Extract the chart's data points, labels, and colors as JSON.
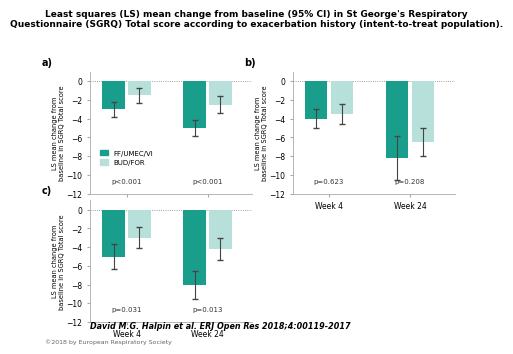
{
  "title": "Least squares (LS) mean change from baseline (95% CI) in St George's Respiratory\nQuestionnaire (SGRQ) Total score according to exacerbation history (intent-to-treat population).",
  "title_fontsize": 6.5,
  "panels": [
    {
      "label": "a)",
      "ff_week4": -3.0,
      "ff_week4_lo": -3.8,
      "ff_week4_hi": -2.2,
      "ff_week24": -5.0,
      "ff_week24_lo": -5.9,
      "ff_week24_hi": -4.1,
      "bud_week4": -1.5,
      "bud_week4_lo": -2.3,
      "bud_week4_hi": -0.7,
      "bud_week24": -2.5,
      "bud_week24_lo": -3.4,
      "bud_week24_hi": -1.6,
      "p_week4": "p<0.001",
      "p_week24": "p<0.001"
    },
    {
      "label": "b)",
      "ff_week4": -4.0,
      "ff_week4_lo": -5.0,
      "ff_week4_hi": -3.0,
      "ff_week24": -8.2,
      "ff_week24_lo": -10.5,
      "ff_week24_hi": -5.9,
      "bud_week4": -3.5,
      "bud_week4_lo": -4.6,
      "bud_week4_hi": -2.4,
      "bud_week24": -6.5,
      "bud_week24_lo": -8.0,
      "bud_week24_hi": -5.0,
      "p_week4": "p=0.623",
      "p_week24": "p=0.208"
    },
    {
      "label": "c)",
      "ff_week4": -5.0,
      "ff_week4_lo": -6.3,
      "ff_week4_hi": -3.7,
      "ff_week24": -8.0,
      "ff_week24_lo": -9.5,
      "ff_week24_hi": -6.5,
      "bud_week4": -3.0,
      "bud_week4_lo": -4.1,
      "bud_week4_hi": -1.9,
      "bud_week24": -4.2,
      "bud_week24_lo": -5.4,
      "bud_week24_hi": -3.0,
      "p_week4": "p=0.031",
      "p_week24": "p=0.013"
    }
  ],
  "ff_color": "#1a9e8c",
  "bud_color": "#b8e0da",
  "ylabel": "LS mean change from\nbaseline in SGRQ Total score",
  "xlabel_week4": "Week 4",
  "xlabel_week24": "Week 24",
  "ylim": [
    -12,
    1
  ],
  "yticks": [
    0,
    -2,
    -4,
    -6,
    -8,
    -10,
    -12
  ],
  "ff_label": "FF/UMEC/VI",
  "bud_label": "BUD/FOR",
  "citation": "David M.G. Halpin et al. ERJ Open Res 2018;4:00119-2017",
  "copyright": "©2018 by European Respiratory Society"
}
